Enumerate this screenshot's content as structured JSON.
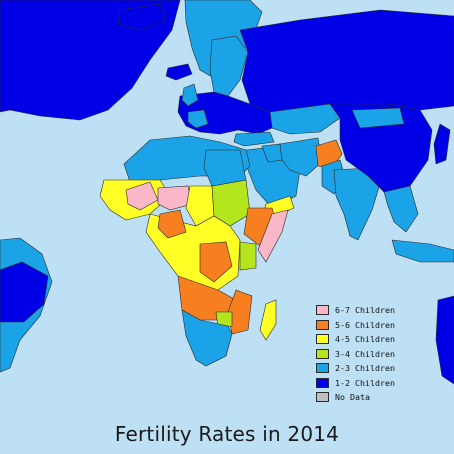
{
  "title": "Fertility Rates in 2014",
  "legend": [
    {
      "label": "6-7 Children",
      "color": "#f9b7c8"
    },
    {
      "label": "5-6 Children",
      "color": "#f77f1f"
    },
    {
      "label": "4-5 Children",
      "color": "#ffff26"
    },
    {
      "label": "3-4 Children",
      "color": "#b5e61d"
    },
    {
      "label": "2-3 Children",
      "color": "#1aa3e6"
    },
    {
      "label": "1-2 Children",
      "color": "#0000e6"
    },
    {
      "label": "No Data",
      "color": "#bfbfbf"
    }
  ],
  "colors": {
    "ocean": "#bde0f5",
    "border": "#2b2b2b"
  }
}
